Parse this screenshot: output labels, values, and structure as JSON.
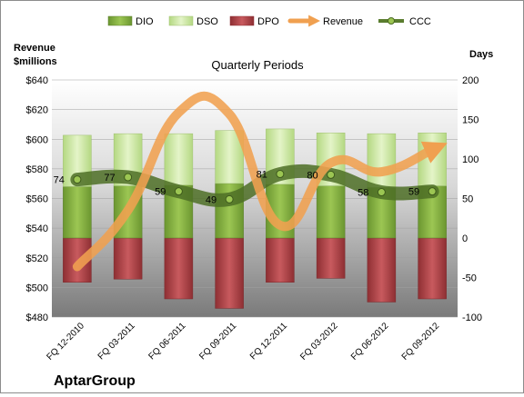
{
  "chart_data": {
    "type": "bar",
    "title": "Quarterly Periods",
    "company": "AptarGroup",
    "left_axis_label": [
      "Revenue",
      "$millions"
    ],
    "right_axis_label": "Days",
    "categories": [
      "FQ 12-2010",
      "FQ 03-2011",
      "FQ 06-2011",
      "FQ 09-2011",
      "FQ 12-2011",
      "FQ 03-2012",
      "FQ 06-2012",
      "FQ 09-2012"
    ],
    "left_axis": {
      "min": 480,
      "max": 640,
      "ticks": [
        "$480",
        "$500",
        "$520",
        "$540",
        "$560",
        "$580",
        "$600",
        "$620",
        "$640"
      ]
    },
    "right_axis": {
      "min": -100,
      "max": 200,
      "ticks": [
        "-100",
        "-50",
        "0",
        "50",
        "100",
        "150",
        "200"
      ]
    },
    "legend": [
      "DIO",
      "DSO",
      "DPO",
      "Revenue",
      "CCC"
    ],
    "series": [
      {
        "name": "DIO",
        "axis": "right",
        "values": [
          65,
          66,
          67,
          69,
          68,
          66,
          64,
          66
        ],
        "color": "#7fa83a"
      },
      {
        "name": "DSO",
        "axis": "right",
        "values": [
          65,
          66,
          65,
          67,
          70,
          67,
          68,
          67
        ],
        "color": "#c9e59a"
      },
      {
        "name": "DPO",
        "axis": "right",
        "values": [
          -56,
          -52,
          -77,
          -89,
          -56,
          -51,
          -81,
          -77
        ],
        "color": "#b8494d"
      },
      {
        "name": "Revenue",
        "axis": "left",
        "values": [
          514,
          552,
          618,
          617,
          542,
          584,
          578,
          593
        ],
        "color": "#f0a050"
      },
      {
        "name": "CCC",
        "axis": "right",
        "values": [
          74,
          77,
          59,
          49,
          81,
          80,
          58,
          59
        ],
        "color": "#5a7c2e"
      }
    ],
    "data_labels": [
      "74",
      "77",
      "59",
      "49",
      "81",
      "80",
      "58",
      "59"
    ],
    "grid": true,
    "legend_position": "top"
  }
}
